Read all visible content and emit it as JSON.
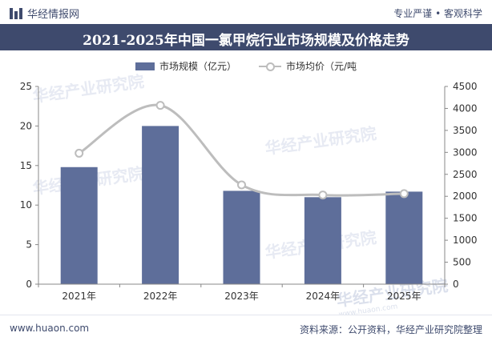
{
  "brand": {
    "name": "华经情报网",
    "tagline": "专业严谨 • 客观科学"
  },
  "footer": {
    "site": "www.huaon.com",
    "source": "资料来源：公开资料，华经产业研究院整理"
  },
  "watermark": {
    "text": "华经产业研究院",
    "sub": "www.huaon.com"
  },
  "colors": {
    "bar": "#5e6e9a",
    "line": "#bdbdbd",
    "header": "#3e4a6d"
  },
  "chart_data": {
    "type": "bar",
    "title": "2021-2025年中国一氯甲烷行业市场规模及价格走势",
    "categories": [
      "2021年",
      "2022年",
      "2023年",
      "2024年",
      "2025年"
    ],
    "series": [
      {
        "name": "市场规模（亿元）",
        "type": "bar",
        "axis": "left",
        "values": [
          14.8,
          20.0,
          11.8,
          11.0,
          11.7
        ]
      },
      {
        "name": "市场均价（元/吨",
        "type": "line",
        "axis": "right",
        "smooth": true,
        "values": [
          2980,
          4070,
          2260,
          2030,
          2060
        ]
      }
    ],
    "y_left": {
      "ylim": [
        0,
        25
      ],
      "ticks": [
        0,
        5,
        10,
        15,
        20,
        25
      ]
    },
    "y_right": {
      "ylim": [
        0,
        4500
      ],
      "ticks": [
        0,
        500,
        1000,
        1500,
        2000,
        2500,
        3000,
        3500,
        4000,
        4500
      ]
    },
    "legend": "top-center",
    "grid": false
  }
}
